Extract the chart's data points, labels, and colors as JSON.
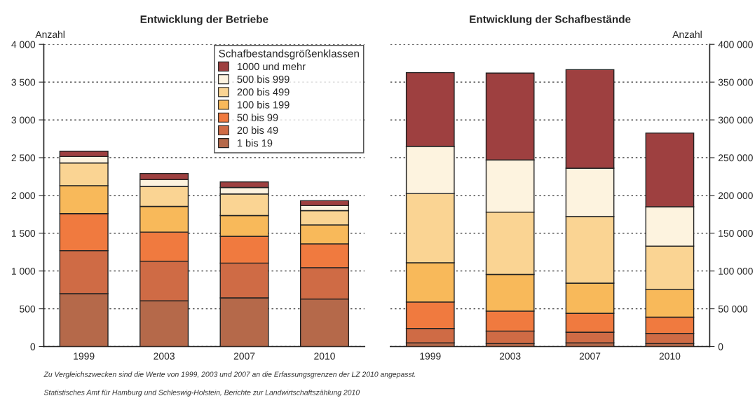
{
  "chart_data": [
    {
      "type": "bar",
      "title": "Entwicklung der Betriebe",
      "ylabel": "Anzahl",
      "stacked": true,
      "categories": [
        "1999",
        "2003",
        "2007",
        "2010"
      ],
      "legend_title": "Schafbestandsgrößenklassen",
      "legend": "top right",
      "grid": "y",
      "ylim": [
        0,
        4000
      ],
      "yticks": [
        0,
        500,
        {
          "value": 1000,
          "label": "1 000"
        },
        {
          "value": 1500,
          "label": "1 500"
        },
        {
          "value": 2000,
          "label": "2 000"
        },
        {
          "value": 2500,
          "label": "2 500"
        },
        {
          "value": 3000,
          "label": "3 000"
        },
        {
          "value": 3500,
          "label": "3 500"
        },
        {
          "value": 4000,
          "label": "4 000"
        }
      ],
      "series": [
        {
          "name": "1 bis 19",
          "color": "#b5694a",
          "values": [
            700,
            605,
            645,
            630
          ]
        },
        {
          "name": "20 bis 49",
          "color": "#cf6b45",
          "values": [
            570,
            525,
            460,
            415
          ]
        },
        {
          "name": "50 bis 99",
          "color": "#f07a3f",
          "values": [
            490,
            385,
            355,
            315
          ]
        },
        {
          "name": "100 bis 199",
          "color": "#f8b95a",
          "values": [
            370,
            340,
            275,
            250
          ]
        },
        {
          "name": "200 bis 499",
          "color": "#fad493",
          "values": [
            300,
            265,
            285,
            190
          ]
        },
        {
          "name": "500 bis 999",
          "color": "#fdf3df",
          "values": [
            85,
            90,
            85,
            65
          ]
        },
        {
          "name": "1000 und mehr",
          "color": "#9e4040",
          "values": [
            70,
            80,
            75,
            65
          ]
        }
      ],
      "annotations": [
        "Zu Vergleichszwecken sind die Werte von 1999, 2003 und 2007 an die Erfassungsgrenzen der LZ 2010 angepasst.",
        "Statistisches Amt für Hamburg und Schleswig-Holstein, Berichte zur Landwirtschaftszählung 2010"
      ]
    },
    {
      "type": "bar",
      "title": "Entwicklung der Schafbestände",
      "ylabel": "Anzahl",
      "stacked": true,
      "categories": [
        "1999",
        "2003",
        "2007",
        "2010"
      ],
      "grid": "y",
      "ylim": [
        0,
        400000
      ],
      "yticks": [
        0,
        {
          "value": 50000,
          "label": "50 000"
        },
        {
          "value": 100000,
          "label": "100 000"
        },
        {
          "value": 150000,
          "label": "150 000"
        },
        {
          "value": 200000,
          "label": "200 000"
        },
        {
          "value": 250000,
          "label": "250 000"
        },
        {
          "value": 300000,
          "label": "300 000"
        },
        {
          "value": 350000,
          "label": "350 000"
        },
        {
          "value": 400000,
          "label": "400 000"
        }
      ],
      "series": [
        {
          "color": "#b5694a",
          "values": [
            5000,
            4000,
            5000,
            4000
          ]
        },
        {
          "color": "#cf6b45",
          "values": [
            19000,
            16500,
            14000,
            13500
          ]
        },
        {
          "color": "#f07a3f",
          "values": [
            35000,
            26500,
            25000,
            21500
          ]
        },
        {
          "color": "#f8b95a",
          "values": [
            52000,
            48500,
            40000,
            36500
          ]
        },
        {
          "color": "#fad493",
          "values": [
            91500,
            82500,
            88000,
            57500
          ]
        },
        {
          "color": "#fdf3df",
          "values": [
            62500,
            69000,
            64000,
            52000
          ]
        },
        {
          "color": "#9e4040",
          "values": [
            97500,
            115000,
            130500,
            97500
          ]
        }
      ]
    }
  ]
}
